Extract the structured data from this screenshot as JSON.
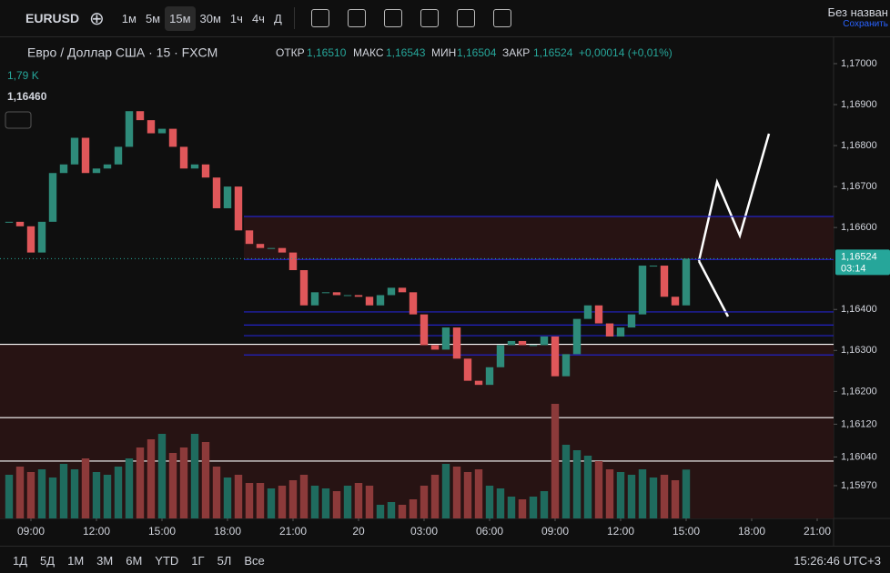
{
  "toolbar": {
    "symbol": "EURUSD",
    "intervals": [
      "1м",
      "5м",
      "15м",
      "30м",
      "1ч",
      "4ч",
      "Д"
    ],
    "active_interval": 2,
    "layout_name": "Без назван",
    "save": "Сохранить"
  },
  "legend": {
    "title": "Евро / Доллар США · 15 · FXCM",
    "open_label": "ОТКР",
    "open": "1,16510",
    "high_label": "МАКС",
    "high": "1,16543",
    "low_label": "МИН",
    "low": "1,16504",
    "close_label": "ЗАКР",
    "close": "1,16524",
    "change": "+0,00014 (+0,01%)",
    "volume": "1,79 K",
    "cursor_price": "1,16460"
  },
  "chart_data": {
    "type": "candlestick",
    "close": [
      1.16614,
      1.16603,
      1.16539,
      1.16614,
      1.16733,
      1.16754,
      1.16819,
      1.16733,
      1.16744,
      1.16754,
      1.16797,
      1.16884,
      1.16862,
      1.1683,
      1.16841,
      1.16797,
      1.16744,
      1.16754,
      1.16722,
      1.16647,
      1.167,
      1.16593,
      1.1656,
      1.1655,
      1.1655,
      1.16539,
      1.16496,
      1.1641,
      1.16442,
      1.16442,
      1.16435,
      1.16435,
      1.16431,
      1.1641,
      1.16435,
      1.16453,
      1.16442,
      1.16388,
      1.16313,
      1.16302,
      1.16356,
      1.1628,
      1.16226,
      1.16216,
      1.16259,
      1.16313,
      1.16323,
      1.16313,
      1.16313,
      1.16334,
      1.16237,
      1.16291,
      1.16377,
      1.1641,
      1.16366,
      1.16334,
      1.16356,
      1.16388,
      1.16507,
      1.16507,
      1.16431,
      1.1641,
      1.16524
    ],
    "volume": [
      1.6,
      1.9,
      1.7,
      1.8,
      1.5,
      2.0,
      1.8,
      2.2,
      1.7,
      1.6,
      1.9,
      2.2,
      2.6,
      2.9,
      3.1,
      2.4,
      2.6,
      3.1,
      2.8,
      1.9,
      1.5,
      1.6,
      1.3,
      1.3,
      1.1,
      1.2,
      1.4,
      1.6,
      1.2,
      1.1,
      1.0,
      1.2,
      1.3,
      1.2,
      0.5,
      0.6,
      0.5,
      0.7,
      1.2,
      1.6,
      2.0,
      1.9,
      1.7,
      1.8,
      1.2,
      1.1,
      0.8,
      0.7,
      0.8,
      1.0,
      4.2,
      2.7,
      2.5,
      2.3,
      2.1,
      1.8,
      1.7,
      1.6,
      1.8,
      1.5,
      1.6,
      1.4,
      1.79
    ],
    "up_color": "#2e8b7a",
    "down_color": "#e0575a",
    "volume_up_color": "#1f6b5e",
    "volume_down_color": "#8c3a3a",
    "ylim": [
      1.1589,
      1.17031
    ],
    "volume_lim": [
      0,
      5
    ],
    "xlim": [
      0,
      75.5
    ],
    "yticks": [
      {
        "value": 1.17,
        "label": "1,17000"
      },
      {
        "value": 1.169,
        "label": "1,16900"
      },
      {
        "value": 1.168,
        "label": "1,16800"
      },
      {
        "value": 1.167,
        "label": "1,16700"
      },
      {
        "value": 1.166,
        "label": "1,16600"
      },
      {
        "value": 1.164,
        "label": "1,16400"
      },
      {
        "value": 1.163,
        "label": "1,16300"
      },
      {
        "value": 1.162,
        "label": "1,16200"
      },
      {
        "value": 1.1612,
        "label": "1,16120"
      },
      {
        "value": 1.1604,
        "label": "1,16040"
      },
      {
        "value": 1.1597,
        "label": "1,15970"
      }
    ],
    "xticks": [
      {
        "value": 2,
        "label": "09:00"
      },
      {
        "value": 8,
        "label": "12:00"
      },
      {
        "value": 14,
        "label": "15:00"
      },
      {
        "value": 20,
        "label": "18:00"
      },
      {
        "value": 26,
        "label": "21:00"
      },
      {
        "value": 32,
        "label": "20"
      },
      {
        "value": 38,
        "label": "03:00"
      },
      {
        "value": 44,
        "label": "06:00"
      },
      {
        "value": 50,
        "label": "09:00"
      },
      {
        "value": 56,
        "label": "12:00"
      },
      {
        "value": 62,
        "label": "15:00"
      },
      {
        "value": 68,
        "label": "18:00"
      },
      {
        "value": 74,
        "label": "21:00"
      }
    ],
    "last_price": {
      "value": 1.16524,
      "label": "1,16524",
      "countdown": "03:14"
    },
    "levels": [
      {
        "value": 1.16627,
        "color": "#2323c8"
      },
      {
        "value": 1.16522,
        "color": "#2323c8"
      },
      {
        "value": 1.16394,
        "color": "#2323c8"
      },
      {
        "value": 1.16362,
        "color": "#2323c8"
      },
      {
        "value": 1.16336,
        "color": "#2323c8"
      },
      {
        "value": 1.16289,
        "color": "#2323c8"
      },
      {
        "value": 1.16315,
        "color": "#ffffff"
      },
      {
        "value": 1.16136,
        "color": "#ffffff"
      },
      {
        "value": 1.1603,
        "color": "#ffffff"
      }
    ],
    "zones": [
      [
        1.16627,
        1.16522
      ],
      [
        1.16315,
        1.1589
      ]
    ]
  },
  "bottom_bar": {
    "ranges": [
      "1Д",
      "5Д",
      "1М",
      "3М",
      "6М",
      "YTD",
      "1Г",
      "5Л",
      "Все"
    ],
    "clock": "15:26:46 UTC+3"
  }
}
